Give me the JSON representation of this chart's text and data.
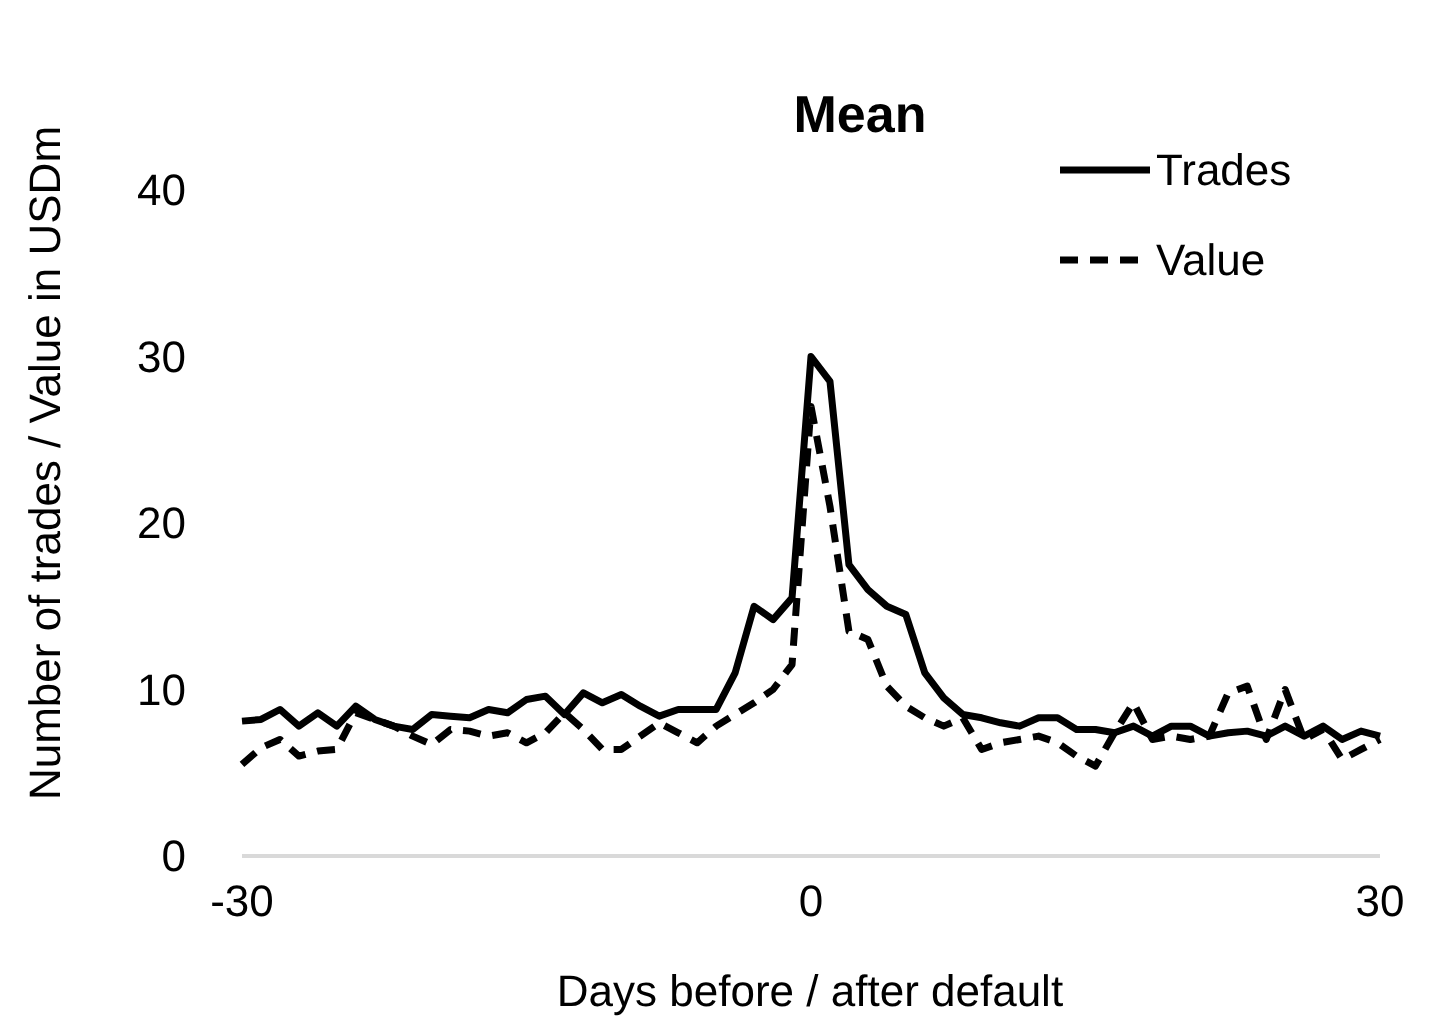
{
  "chart_data": {
    "type": "line",
    "title": "Mean",
    "xlabel": "Days before / after default",
    "ylabel": "Number of trades / Value in  USDm",
    "x": [
      -30,
      -29,
      -28,
      -27,
      -26,
      -25,
      -24,
      -23,
      -22,
      -21,
      -20,
      -19,
      -18,
      -17,
      -16,
      -15,
      -14,
      -13,
      -12,
      -11,
      -10,
      -9,
      -8,
      -7,
      -6,
      -5,
      -4,
      -3,
      -2,
      -1,
      0,
      1,
      2,
      3,
      4,
      5,
      6,
      7,
      8,
      9,
      10,
      11,
      12,
      13,
      14,
      15,
      16,
      17,
      18,
      19,
      20,
      21,
      22,
      23,
      24,
      25,
      26,
      27,
      28,
      29,
      30
    ],
    "series": [
      {
        "name": "Trades",
        "color": "#000000",
        "line_style": "solid",
        "values": [
          8.1,
          8.2,
          8.8,
          7.8,
          8.6,
          7.8,
          9,
          8.2,
          7.8,
          7.6,
          8.5,
          8.4,
          8.3,
          8.8,
          8.6,
          9.4,
          9.6,
          8.5,
          9.8,
          9.2,
          9.7,
          9,
          8.4,
          8.8,
          8.8,
          8.8,
          11,
          15,
          14.2,
          15.5,
          30,
          28.5,
          17.5,
          16,
          15,
          14.5,
          11,
          9.5,
          8.5,
          8.3,
          8,
          7.8,
          8.3,
          8.3,
          7.6,
          7.6,
          7.4,
          7.8,
          7.2,
          7.8,
          7.8,
          7.2,
          7.4,
          7.5,
          7.2,
          7.8,
          7.2,
          7.8,
          7,
          7.5,
          7.2
        ]
      },
      {
        "name": "Value",
        "color": "#000000",
        "line_style": "dashed",
        "values": [
          5.5,
          6.5,
          7,
          6,
          6.3,
          6.4,
          8.6,
          8.2,
          7.8,
          7.2,
          6.7,
          7.6,
          7.5,
          7.2,
          7.4,
          6.8,
          7.4,
          8.6,
          7.6,
          6.4,
          6.4,
          7.2,
          8,
          7.4,
          6.8,
          7.8,
          8.5,
          9.2,
          10,
          11.5,
          27,
          21,
          13.5,
          13,
          10.2,
          9,
          8.3,
          7.8,
          8.3,
          6.4,
          6.8,
          7,
          7.2,
          6.8,
          6,
          5.4,
          7.4,
          9.2,
          7,
          7.2,
          7,
          7.2,
          9.8,
          10.2,
          7,
          10,
          7,
          7.6,
          5.8,
          6.4,
          7
        ]
      }
    ],
    "xlim": [
      -30,
      30
    ],
    "xticks": [
      -30,
      0,
      30
    ],
    "ylim": [
      0,
      40
    ],
    "yticks": [
      0,
      10,
      20,
      30,
      40
    ],
    "grid": false,
    "legend": "top right",
    "marker": "none"
  }
}
